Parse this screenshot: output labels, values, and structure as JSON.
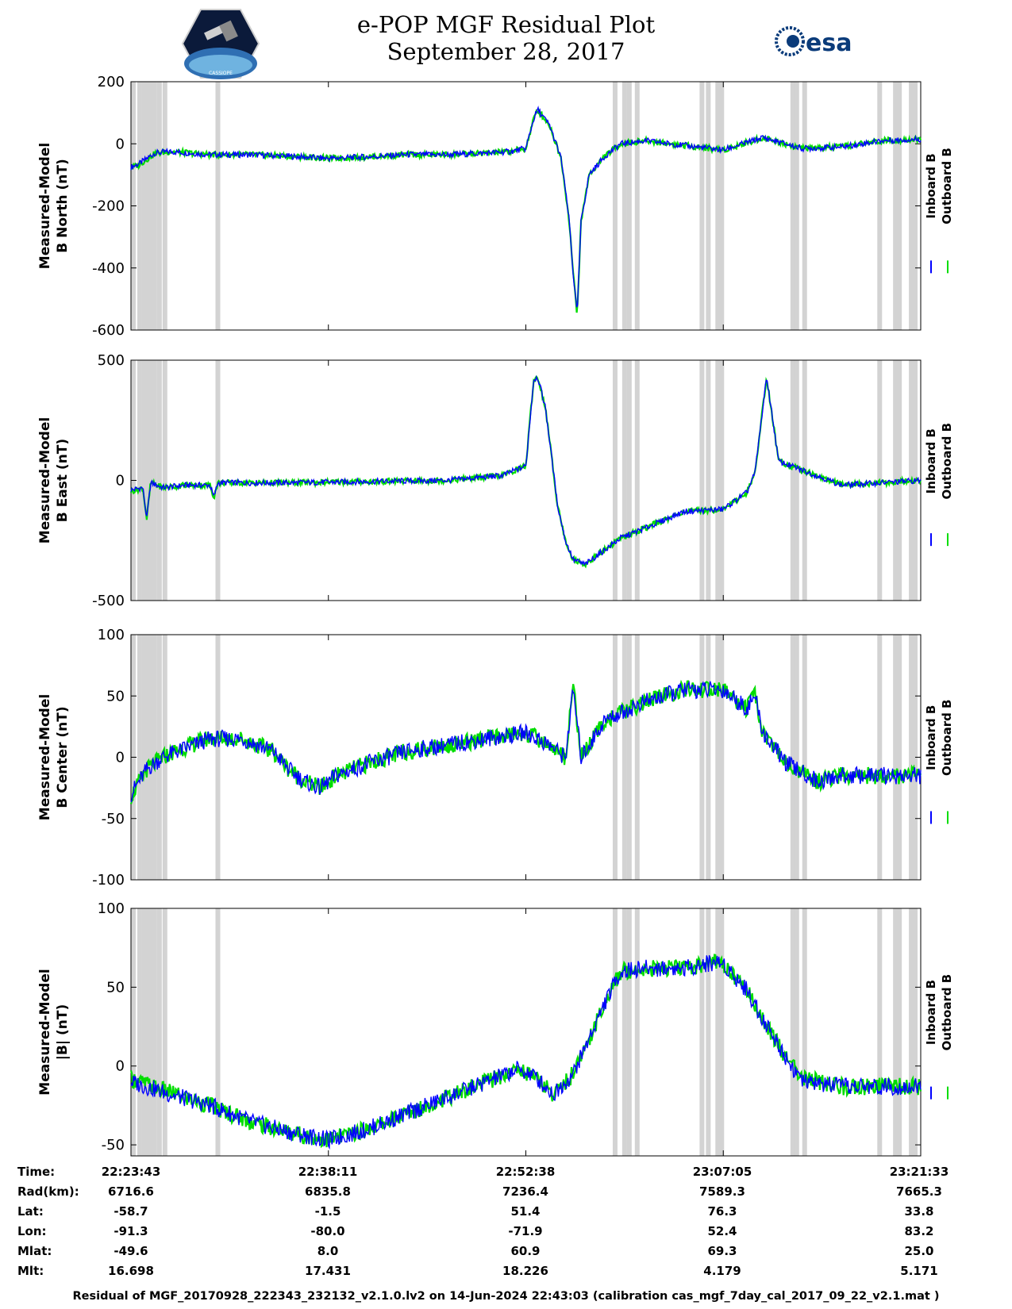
{
  "header": {
    "title_line1": "e-POP MGF Residual Plot",
    "title_line2": "September 28, 2017",
    "left_logo_text": "CASSIOPE",
    "right_logo_text": "esa"
  },
  "colors": {
    "inboard": "#0000ff",
    "outboard": "#00dd00",
    "gap": "#d3d3d3"
  },
  "legend": {
    "inboard": "Inboard B",
    "outboard": "Outboard B"
  },
  "chart_data": [
    {
      "type": "line",
      "ylabel_line1": "Measured-Model",
      "ylabel_line2": "B North (nT)",
      "ylim": [
        -600,
        200
      ],
      "yticks": [
        200,
        0,
        -200,
        -400,
        -600
      ],
      "x": [
        0.0,
        0.01,
        0.03,
        0.05,
        0.1,
        0.15,
        0.2,
        0.25,
        0.3,
        0.35,
        0.4,
        0.45,
        0.48,
        0.5,
        0.51,
        0.515,
        0.53,
        0.545,
        0.555,
        0.56,
        0.565,
        0.57,
        0.58,
        0.6,
        0.62,
        0.65,
        0.7,
        0.75,
        0.8,
        0.85,
        0.9,
        0.95,
        1.0
      ],
      "series": [
        {
          "name": "Inboard B",
          "values": [
            -75,
            -65,
            -30,
            -25,
            -35,
            -35,
            -40,
            -47,
            -42,
            -35,
            -35,
            -30,
            -25,
            -15,
            80,
            110,
            60,
            -50,
            -250,
            -420,
            -550,
            -250,
            -100,
            -40,
            0,
            10,
            -5,
            -20,
            20,
            -15,
            -10,
            10,
            15
          ]
        },
        {
          "name": "Outboard B",
          "values": [
            -78,
            -68,
            -32,
            -25,
            -35,
            -35,
            -40,
            -47,
            -42,
            -35,
            -35,
            -30,
            -25,
            -15,
            80,
            110,
            60,
            -50,
            -250,
            -420,
            -550,
            -250,
            -100,
            -40,
            0,
            10,
            -5,
            -20,
            20,
            -15,
            -10,
            10,
            15
          ]
        }
      ]
    },
    {
      "type": "line",
      "ylabel_line1": "Measured-Model",
      "ylabel_line2": "B East (nT)",
      "ylim": [
        -500,
        500
      ],
      "yticks": [
        500,
        0,
        -500
      ],
      "x": [
        0.0,
        0.015,
        0.02,
        0.025,
        0.04,
        0.07,
        0.1,
        0.105,
        0.11,
        0.2,
        0.3,
        0.4,
        0.47,
        0.5,
        0.51,
        0.515,
        0.525,
        0.54,
        0.55,
        0.56,
        0.575,
        0.62,
        0.65,
        0.7,
        0.75,
        0.78,
        0.79,
        0.8,
        0.805,
        0.82,
        0.9,
        0.95,
        1.0
      ],
      "series": [
        {
          "name": "Inboard B",
          "values": [
            -40,
            -30,
            -160,
            -10,
            -30,
            -20,
            -20,
            -70,
            -10,
            -10,
            -5,
            0,
            20,
            60,
            420,
            430,
            300,
            -100,
            -250,
            -330,
            -350,
            -240,
            -200,
            -130,
            -120,
            -50,
            30,
            300,
            430,
            80,
            -20,
            -10,
            0
          ]
        },
        {
          "name": "Outboard B",
          "values": [
            -45,
            -32,
            -160,
            -10,
            -30,
            -20,
            -20,
            -70,
            -10,
            -10,
            -5,
            0,
            20,
            60,
            420,
            430,
            300,
            -100,
            -250,
            -330,
            -350,
            -240,
            -200,
            -130,
            -120,
            -50,
            30,
            300,
            430,
            80,
            -20,
            -10,
            0
          ]
        }
      ]
    },
    {
      "type": "line",
      "ylabel_line1": "Measured-Model",
      "ylabel_line2": "B Center (nT)",
      "ylim": [
        -100,
        100
      ],
      "yticks": [
        100,
        50,
        0,
        -50,
        -100
      ],
      "x": [
        0.0,
        0.02,
        0.04,
        0.06,
        0.08,
        0.1,
        0.14,
        0.18,
        0.2,
        0.22,
        0.24,
        0.26,
        0.3,
        0.35,
        0.4,
        0.45,
        0.5,
        0.53,
        0.55,
        0.56,
        0.57,
        0.6,
        0.65,
        0.7,
        0.75,
        0.78,
        0.79,
        0.8,
        0.83,
        0.87,
        0.9,
        0.95,
        1.0
      ],
      "series": [
        {
          "name": "Inboard B",
          "values": [
            -30,
            -10,
            0,
            5,
            10,
            15,
            15,
            5,
            -10,
            -20,
            -25,
            -15,
            -5,
            5,
            10,
            15,
            20,
            10,
            0,
            55,
            0,
            30,
            45,
            55,
            55,
            40,
            50,
            20,
            -5,
            -20,
            -15,
            -15,
            -15
          ]
        },
        {
          "name": "Outboard B",
          "values": [
            -32,
            -10,
            0,
            6,
            11,
            16,
            15,
            5,
            -10,
            -20,
            -25,
            -15,
            -5,
            5,
            10,
            15,
            20,
            10,
            0,
            60,
            0,
            30,
            45,
            55,
            55,
            40,
            50,
            20,
            -5,
            -20,
            -15,
            -15,
            -15
          ]
        }
      ]
    },
    {
      "type": "line",
      "ylabel_line1": "Measured-Model",
      "ylabel_line2": "|B| (nT)",
      "ylim": [
        -57,
        100
      ],
      "yticks": [
        100,
        50,
        0,
        -50
      ],
      "x": [
        0.0,
        0.05,
        0.1,
        0.15,
        0.2,
        0.25,
        0.3,
        0.35,
        0.4,
        0.45,
        0.49,
        0.51,
        0.535,
        0.56,
        0.6,
        0.62,
        0.65,
        0.7,
        0.74,
        0.75,
        0.78,
        0.8,
        0.83,
        0.85,
        0.9,
        0.95,
        1.0
      ],
      "series": [
        {
          "name": "Inboard B",
          "values": [
            -10,
            -18,
            -25,
            -35,
            -42,
            -47,
            -40,
            -30,
            -20,
            -10,
            -2,
            -6,
            -18,
            -5,
            40,
            60,
            62,
            62,
            66,
            65,
            48,
            30,
            5,
            -10,
            -13,
            -13,
            -13
          ]
        },
        {
          "name": "Outboard B",
          "values": [
            -8,
            -17,
            -25,
            -35,
            -42,
            -47,
            -40,
            -30,
            -20,
            -10,
            -2,
            -6,
            -18,
            -5,
            40,
            60,
            62,
            62,
            66,
            65,
            48,
            30,
            5,
            -8,
            -13,
            -13,
            -13
          ]
        }
      ]
    }
  ],
  "table": {
    "labels": [
      "Time:",
      "Rad(km):",
      "Lat:",
      "Lon:",
      "Mlat:",
      "Mlt:"
    ],
    "columns": [
      [
        "22:23:43",
        "6716.6",
        "-58.7",
        "-91.3",
        "-49.6",
        "16.698"
      ],
      [
        "22:38:11",
        "6835.8",
        "-1.5",
        "-80.0",
        "8.0",
        "17.431"
      ],
      [
        "22:52:38",
        "7236.4",
        "51.4",
        "-71.9",
        "60.9",
        "18.226"
      ],
      [
        "23:07:05",
        "7589.3",
        "76.3",
        "52.4",
        "69.3",
        "4.179"
      ],
      [
        "23:21:33",
        "7665.3",
        "33.8",
        "83.2",
        "25.0",
        "5.171"
      ]
    ]
  },
  "gaps": [
    0.0,
    0.008,
    0.014,
    0.018,
    0.022,
    0.027,
    0.033,
    0.04,
    0.107,
    0.61,
    0.622,
    0.628,
    0.638,
    0.72,
    0.728,
    0.74,
    0.745,
    0.835,
    0.84,
    0.85,
    0.945,
    0.965,
    0.97,
    0.985,
    0.99
  ],
  "footer": "Residual of MGF_20170928_222343_232132_v2.1.0.lv2 on 14-Jun-2024 22:43:03 (calibration cas_mgf_7day_cal_2017_09_22_v2.1.mat )"
}
